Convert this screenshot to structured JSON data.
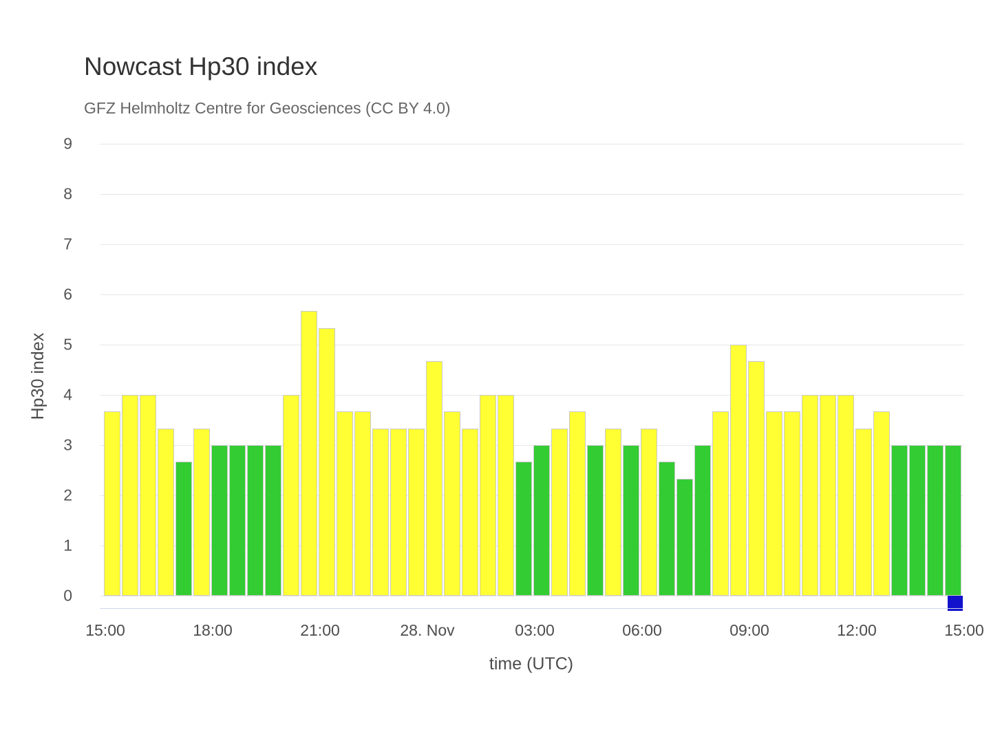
{
  "title": "Nowcast Hp30 index",
  "subtitle": "GFZ Helmholtz Centre for Geosciences (CC BY 4.0)",
  "y_axis": {
    "title": "Hp30 index",
    "tick_labels": [
      "0",
      "1",
      "2",
      "3",
      "4",
      "5",
      "6",
      "7",
      "8",
      "9"
    ]
  },
  "x_axis": {
    "title": "time (UTC)",
    "tick_labels": [
      "15:00",
      "18:00",
      "21:00",
      "28. Nov",
      "03:00",
      "06:00",
      "09:00",
      "12:00",
      "15:00"
    ]
  },
  "colors": {
    "yellow": "#ffff33",
    "green": "#33cc33",
    "blue": "#1212cc",
    "bar_border": "#c9c9c9",
    "grid": "#e7e7e7",
    "axis_line": "#ccd6eb",
    "title_text": "#333333",
    "subtitle_text": "#666666",
    "axis_text": "#4d4d4d"
  },
  "chart_data": {
    "type": "bar",
    "title": "Nowcast Hp30 index",
    "subtitle": "GFZ Helmholtz Centre for Geosciences (CC BY 4.0)",
    "xlabel": "time (UTC)",
    "ylabel": "Hp30 index",
    "ylim": [
      0,
      9
    ],
    "grid": true,
    "interval_minutes": 30,
    "x_tick_labels": [
      "15:00",
      "18:00",
      "21:00",
      "28. Nov",
      "03:00",
      "06:00",
      "09:00",
      "12:00",
      "15:00"
    ],
    "values": [
      3.67,
      4,
      4,
      3.33,
      2.67,
      3.33,
      3,
      3,
      3,
      3,
      4,
      5.67,
      5.33,
      3.67,
      3.67,
      3.33,
      3.33,
      3.33,
      4.67,
      3.67,
      3.33,
      4,
      4,
      2.67,
      3,
      3.33,
      3.67,
      3,
      3.33,
      3,
      3.33,
      2.67,
      2.33,
      3,
      3.67,
      5,
      4.67,
      3.67,
      3.67,
      4,
      4,
      4,
      3.33,
      3.67,
      3,
      3,
      3,
      3
    ],
    "bar_colors": [
      "yellow",
      "yellow",
      "yellow",
      "yellow",
      "green",
      "yellow",
      "green",
      "green",
      "green",
      "green",
      "yellow",
      "yellow",
      "yellow",
      "yellow",
      "yellow",
      "yellow",
      "yellow",
      "yellow",
      "yellow",
      "yellow",
      "yellow",
      "yellow",
      "yellow",
      "green",
      "green",
      "yellow",
      "yellow",
      "green",
      "yellow",
      "green",
      "yellow",
      "green",
      "green",
      "green",
      "yellow",
      "yellow",
      "yellow",
      "yellow",
      "yellow",
      "yellow",
      "yellow",
      "yellow",
      "yellow",
      "yellow",
      "green",
      "green",
      "green",
      "green"
    ],
    "color_rule": "green when value <= 3, yellow when value > 3",
    "pending_marker": {
      "x_label": "15:00",
      "color": "blue"
    }
  }
}
